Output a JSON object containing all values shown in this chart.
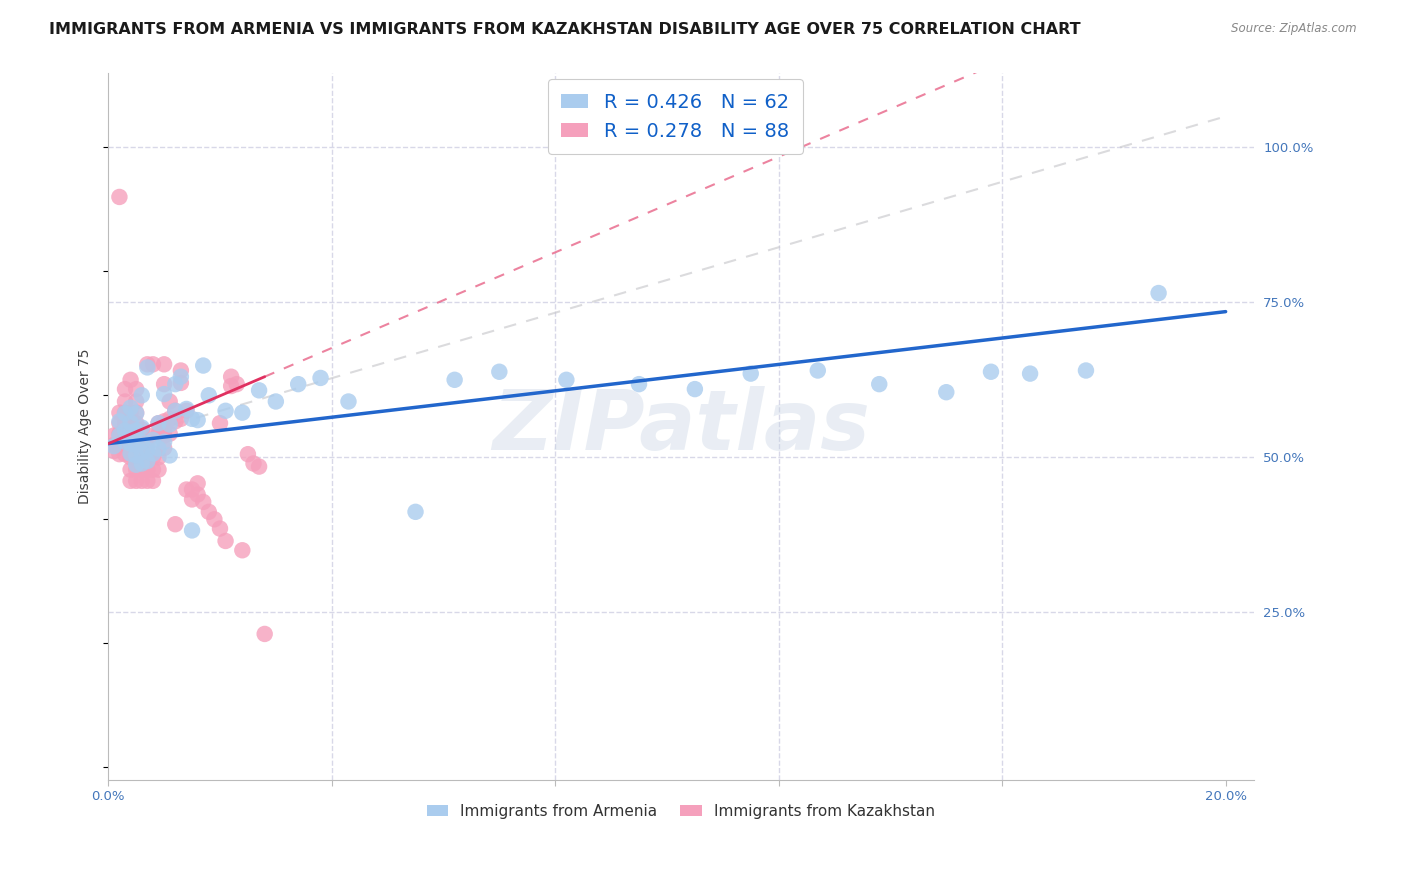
{
  "title": "IMMIGRANTS FROM ARMENIA VS IMMIGRANTS FROM KAZAKHSTAN DISABILITY AGE OVER 75 CORRELATION CHART",
  "source": "Source: ZipAtlas.com",
  "ylabel": "Disability Age Over 75",
  "xlim": [
    0.0,
    0.205
  ],
  "ylim": [
    -0.02,
    1.12
  ],
  "xtick_positions": [
    0.0,
    0.04,
    0.08,
    0.12,
    0.16,
    0.2
  ],
  "xticklabels": [
    "0.0%",
    "",
    "",
    "",
    "",
    "20.0%"
  ],
  "ytick_right_positions": [
    0.25,
    0.5,
    0.75,
    1.0
  ],
  "yticklabels_right": [
    "25.0%",
    "50.0%",
    "75.0%",
    "100.0%"
  ],
  "R_armenia": 0.426,
  "N_armenia": 62,
  "R_kazakhstan": 0.278,
  "N_kazakhstan": 88,
  "armenia_dot_color": "#aaccee",
  "kazakhstan_dot_color": "#f5a0bc",
  "armenia_line_color": "#2266cc",
  "kazakhstan_line_color": "#e03060",
  "legend_R_color": "#1060c8",
  "ref_line_color": "#c8c8cc",
  "watermark": "ZIPatlas",
  "background_color": "#ffffff",
  "grid_color": "#d8d8e8",
  "title_fontsize": 11.5,
  "axis_label_fontsize": 10,
  "tick_fontsize": 9.5,
  "armenia_x": [
    0.001,
    0.002,
    0.002,
    0.003,
    0.003,
    0.003,
    0.004,
    0.004,
    0.004,
    0.004,
    0.004,
    0.005,
    0.005,
    0.005,
    0.005,
    0.005,
    0.006,
    0.006,
    0.006,
    0.006,
    0.006,
    0.007,
    0.007,
    0.007,
    0.008,
    0.008,
    0.009,
    0.009,
    0.01,
    0.01,
    0.011,
    0.011,
    0.012,
    0.012,
    0.013,
    0.014,
    0.015,
    0.015,
    0.016,
    0.017,
    0.018,
    0.021,
    0.024,
    0.027,
    0.03,
    0.034,
    0.038,
    0.043,
    0.055,
    0.062,
    0.07,
    0.082,
    0.095,
    0.105,
    0.115,
    0.127,
    0.138,
    0.15,
    0.158,
    0.165,
    0.175,
    0.188
  ],
  "armenia_y": [
    0.518,
    0.535,
    0.558,
    0.525,
    0.543,
    0.571,
    0.506,
    0.522,
    0.54,
    0.556,
    0.58,
    0.488,
    0.503,
    0.52,
    0.543,
    0.571,
    0.49,
    0.508,
    0.525,
    0.548,
    0.6,
    0.494,
    0.512,
    0.645,
    0.506,
    0.528,
    0.514,
    0.555,
    0.525,
    0.602,
    0.503,
    0.553,
    0.575,
    0.618,
    0.63,
    0.578,
    0.562,
    0.382,
    0.56,
    0.648,
    0.6,
    0.575,
    0.572,
    0.608,
    0.59,
    0.618,
    0.628,
    0.59,
    0.412,
    0.625,
    0.638,
    0.625,
    0.618,
    0.61,
    0.635,
    0.64,
    0.618,
    0.605,
    0.638,
    0.635,
    0.64,
    0.765
  ],
  "kazakhstan_x": [
    0.001,
    0.001,
    0.001,
    0.002,
    0.002,
    0.002,
    0.002,
    0.002,
    0.002,
    0.003,
    0.003,
    0.003,
    0.003,
    0.003,
    0.003,
    0.003,
    0.004,
    0.004,
    0.004,
    0.004,
    0.004,
    0.004,
    0.004,
    0.004,
    0.005,
    0.005,
    0.005,
    0.005,
    0.005,
    0.005,
    0.005,
    0.005,
    0.005,
    0.006,
    0.006,
    0.006,
    0.006,
    0.006,
    0.007,
    0.007,
    0.007,
    0.007,
    0.007,
    0.007,
    0.008,
    0.008,
    0.008,
    0.008,
    0.008,
    0.009,
    0.009,
    0.009,
    0.009,
    0.01,
    0.01,
    0.01,
    0.01,
    0.01,
    0.01,
    0.011,
    0.011,
    0.011,
    0.012,
    0.012,
    0.012,
    0.013,
    0.013,
    0.013,
    0.014,
    0.014,
    0.015,
    0.015,
    0.016,
    0.016,
    0.017,
    0.018,
    0.019,
    0.02,
    0.02,
    0.021,
    0.022,
    0.022,
    0.023,
    0.024,
    0.025,
    0.026,
    0.027,
    0.028
  ],
  "kazakhstan_y": [
    0.51,
    0.52,
    0.535,
    0.505,
    0.52,
    0.538,
    0.555,
    0.572,
    0.92,
    0.505,
    0.52,
    0.538,
    0.555,
    0.572,
    0.59,
    0.61,
    0.462,
    0.48,
    0.5,
    0.52,
    0.538,
    0.555,
    0.572,
    0.625,
    0.462,
    0.48,
    0.5,
    0.52,
    0.538,
    0.555,
    0.572,
    0.59,
    0.61,
    0.462,
    0.48,
    0.5,
    0.52,
    0.545,
    0.462,
    0.48,
    0.5,
    0.52,
    0.65,
    0.48,
    0.462,
    0.48,
    0.5,
    0.535,
    0.65,
    0.48,
    0.5,
    0.538,
    0.555,
    0.515,
    0.535,
    0.65,
    0.542,
    0.558,
    0.618,
    0.538,
    0.562,
    0.59,
    0.558,
    0.575,
    0.392,
    0.62,
    0.64,
    0.562,
    0.448,
    0.575,
    0.432,
    0.448,
    0.44,
    0.458,
    0.428,
    0.412,
    0.4,
    0.385,
    0.555,
    0.365,
    0.615,
    0.63,
    0.618,
    0.35,
    0.505,
    0.49,
    0.485,
    0.215
  ],
  "arm_line_x0": 0.0,
  "arm_line_y0": 0.522,
  "arm_line_x1": 0.2,
  "arm_line_y1": 0.735,
  "kaz_line_x0": 0.0,
  "kaz_line_y0": 0.522,
  "kaz_line_x1": 0.028,
  "kaz_line_y1": 0.63,
  "ref_line_x0": 0.0,
  "ref_line_y0": 0.522,
  "ref_line_x1": 0.2,
  "ref_line_y1": 1.05
}
